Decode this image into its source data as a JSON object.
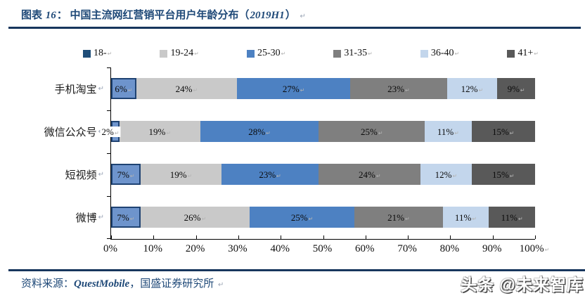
{
  "meta": {
    "return_mark": "↵"
  },
  "header": {
    "label": "图表",
    "number": "16",
    "colon": "：",
    "title_main": "中国主流网红营销平台用户年龄分布（",
    "title_year": "2019H1",
    "title_close": "）"
  },
  "chart_data": {
    "type": "bar",
    "stacked": true,
    "orientation": "horizontal",
    "title": "中国主流网红营销平台用户年龄分布（2019H1）",
    "categories": [
      "手机淘宝",
      "微信公众号",
      "短视频",
      "微博"
    ],
    "series": [
      {
        "name": "18-",
        "color": "#1F4E79",
        "values": [
          6,
          2,
          7,
          7
        ],
        "selected": true
      },
      {
        "name": "19-24",
        "color": "#C9C9C9",
        "values": [
          24,
          19,
          19,
          26
        ]
      },
      {
        "name": "25-30",
        "color": "#4D81C2",
        "values": [
          27,
          28,
          23,
          25
        ]
      },
      {
        "name": "31-35",
        "color": "#7F7F7F",
        "values": [
          23,
          25,
          24,
          21
        ]
      },
      {
        "name": "36-40",
        "color": "#C3D6EC",
        "values": [
          12,
          11,
          12,
          11
        ]
      },
      {
        "name": "41+",
        "color": "#595959",
        "values": [
          9,
          15,
          15,
          11
        ]
      }
    ],
    "x_ticks": [
      "0%",
      "10%",
      "20%",
      "30%",
      "40%",
      "50%",
      "60%",
      "70%",
      "80%",
      "90%",
      "100%"
    ],
    "xlim": [
      0,
      100
    ],
    "value_suffix": "%",
    "legend_position": "top",
    "grid": false
  },
  "footer": {
    "source_prefix": "资料来源：",
    "source_name": "QuestMobile",
    "source_rest": "，国盛证券研究所",
    "watermark": "头条 @未来智库"
  }
}
